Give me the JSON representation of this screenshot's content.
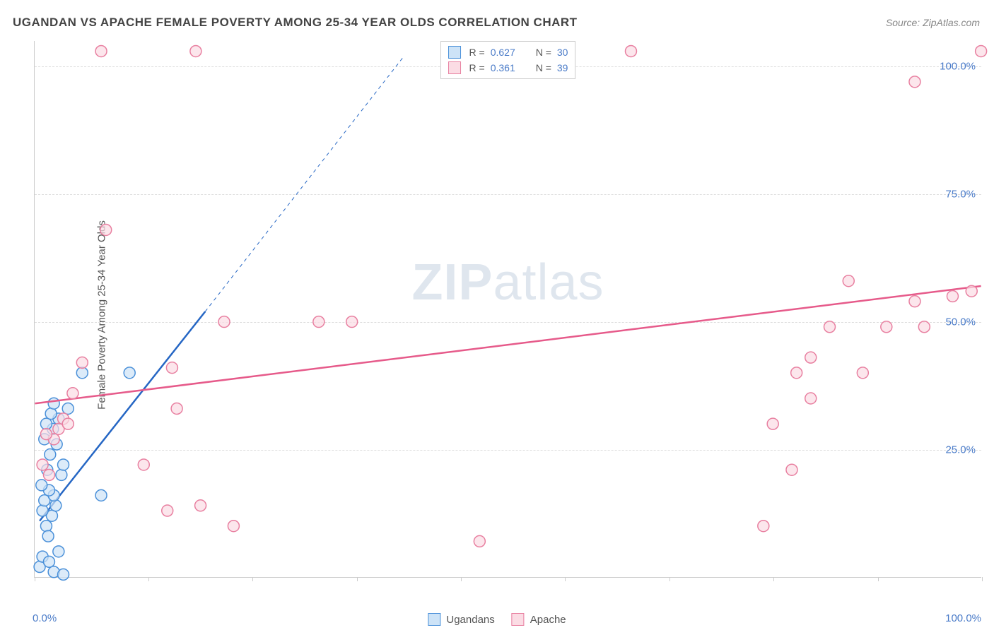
{
  "title": "UGANDAN VS APACHE FEMALE POVERTY AMONG 25-34 YEAR OLDS CORRELATION CHART",
  "source": "Source: ZipAtlas.com",
  "watermark_zip": "ZIP",
  "watermark_atlas": "atlas",
  "chart": {
    "type": "scatter",
    "xlim": [
      0,
      100
    ],
    "ylim": [
      0,
      105
    ],
    "y_axis_label": "Female Poverty Among 25-34 Year Olds",
    "y_ticks": [
      {
        "value": 25,
        "label": "25.0%"
      },
      {
        "value": 50,
        "label": "50.0%"
      },
      {
        "value": 75,
        "label": "75.0%"
      },
      {
        "value": 100,
        "label": "100.0%"
      }
    ],
    "x_tick_positions": [
      0,
      12,
      23,
      34,
      45,
      56,
      67,
      78,
      89,
      100
    ],
    "x_labels": [
      {
        "value": 0,
        "label": "0.0%"
      },
      {
        "value": 100,
        "label": "100.0%"
      }
    ],
    "background_color": "#ffffff",
    "grid_color": "#dddddd",
    "axis_color": "#cccccc",
    "tick_label_color": "#4a7bc8",
    "marker_radius": 8,
    "marker_stroke_width": 1.5,
    "trend_line_width": 2.5,
    "trend_dash_width": 1,
    "series": [
      {
        "name": "Ugandans",
        "fill": "#cde3f7",
        "stroke": "#4a90d9",
        "line_color": "#2566c4",
        "R": "0.627",
        "N": "30",
        "trend_solid": {
          "x1": 0.5,
          "y1": 11,
          "x2": 18,
          "y2": 52
        },
        "trend_dash": {
          "x1": 18,
          "y1": 52,
          "x2": 39,
          "y2": 102
        },
        "points": [
          {
            "x": 0.5,
            "y": 2
          },
          {
            "x": 0.8,
            "y": 4
          },
          {
            "x": 1.5,
            "y": 3
          },
          {
            "x": 2.5,
            "y": 5
          },
          {
            "x": 1.2,
            "y": 10
          },
          {
            "x": 1.8,
            "y": 12
          },
          {
            "x": 0.8,
            "y": 13
          },
          {
            "x": 2.2,
            "y": 14
          },
          {
            "x": 1.0,
            "y": 15
          },
          {
            "x": 2.0,
            "y": 16
          },
          {
            "x": 1.5,
            "y": 17
          },
          {
            "x": 0.7,
            "y": 18
          },
          {
            "x": 2.8,
            "y": 20
          },
          {
            "x": 1.3,
            "y": 21
          },
          {
            "x": 3.0,
            "y": 22
          },
          {
            "x": 7.0,
            "y": 16
          },
          {
            "x": 1.6,
            "y": 24
          },
          {
            "x": 2.3,
            "y": 26
          },
          {
            "x": 1.0,
            "y": 27
          },
          {
            "x": 1.9,
            "y": 29
          },
          {
            "x": 1.2,
            "y": 30
          },
          {
            "x": 2.5,
            "y": 31
          },
          {
            "x": 1.7,
            "y": 32
          },
          {
            "x": 3.5,
            "y": 33
          },
          {
            "x": 2.0,
            "y": 34
          },
          {
            "x": 5.0,
            "y": 40
          },
          {
            "x": 10.0,
            "y": 40
          },
          {
            "x": 2.0,
            "y": 1
          },
          {
            "x": 3.0,
            "y": 0.5
          },
          {
            "x": 1.4,
            "y": 8
          }
        ]
      },
      {
        "name": "Apache",
        "fill": "#fbdce4",
        "stroke": "#e87fa0",
        "line_color": "#e65a8a",
        "R": "0.361",
        "N": "39",
        "trend_solid": {
          "x1": 0,
          "y1": 34,
          "x2": 100,
          "y2": 57
        },
        "points": [
          {
            "x": 1.5,
            "y": 20
          },
          {
            "x": 0.8,
            "y": 22
          },
          {
            "x": 2.0,
            "y": 27
          },
          {
            "x": 1.2,
            "y": 28
          },
          {
            "x": 2.5,
            "y": 29
          },
          {
            "x": 3.0,
            "y": 31
          },
          {
            "x": 3.5,
            "y": 30
          },
          {
            "x": 4.0,
            "y": 36
          },
          {
            "x": 5.0,
            "y": 42
          },
          {
            "x": 11.5,
            "y": 22
          },
          {
            "x": 14.0,
            "y": 13
          },
          {
            "x": 17.5,
            "y": 14
          },
          {
            "x": 15.0,
            "y": 33
          },
          {
            "x": 21.0,
            "y": 10
          },
          {
            "x": 14.5,
            "y": 41
          },
          {
            "x": 20.0,
            "y": 50
          },
          {
            "x": 7.5,
            "y": 68
          },
          {
            "x": 30.0,
            "y": 50
          },
          {
            "x": 33.5,
            "y": 50
          },
          {
            "x": 47.0,
            "y": 7
          },
          {
            "x": 63.0,
            "y": 103
          },
          {
            "x": 7.0,
            "y": 103
          },
          {
            "x": 17.0,
            "y": 103
          },
          {
            "x": 77.0,
            "y": 10
          },
          {
            "x": 80.0,
            "y": 21
          },
          {
            "x": 78.0,
            "y": 30
          },
          {
            "x": 82.0,
            "y": 35
          },
          {
            "x": 80.5,
            "y": 40
          },
          {
            "x": 87.5,
            "y": 40
          },
          {
            "x": 82.0,
            "y": 43
          },
          {
            "x": 84.0,
            "y": 49
          },
          {
            "x": 90.0,
            "y": 49
          },
          {
            "x": 94.0,
            "y": 49
          },
          {
            "x": 93.0,
            "y": 54
          },
          {
            "x": 97.0,
            "y": 55
          },
          {
            "x": 99.0,
            "y": 56
          },
          {
            "x": 86.0,
            "y": 58
          },
          {
            "x": 93.0,
            "y": 97
          },
          {
            "x": 100.0,
            "y": 103
          }
        ]
      }
    ]
  },
  "legend_bottom": [
    {
      "name": "Ugandans",
      "fill": "#cde3f7",
      "stroke": "#4a90d9"
    },
    {
      "name": "Apache",
      "fill": "#fbdce4",
      "stroke": "#e87fa0"
    }
  ]
}
